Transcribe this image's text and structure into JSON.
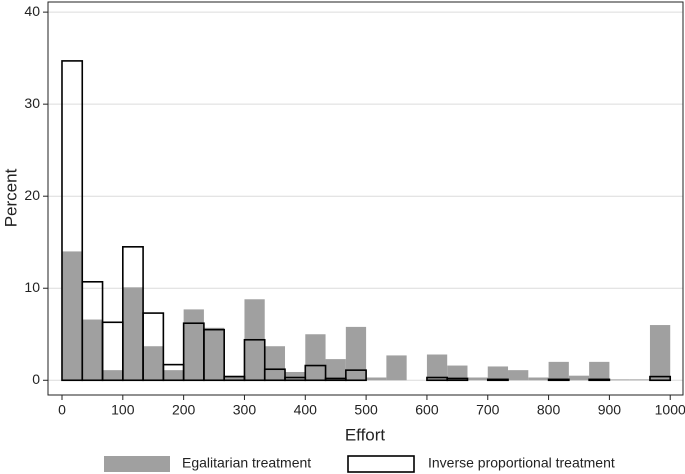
{
  "chart_data": {
    "type": "histogram",
    "x_label": "Effort",
    "y_label": "Percent",
    "bins": [
      0,
      33.33,
      66.67,
      100,
      133.33,
      166.67,
      200,
      233.33,
      266.67,
      300,
      333.33,
      366.67,
      400,
      433.33,
      466.67,
      500,
      533.33,
      566.67,
      600,
      633.33,
      666.67,
      700,
      733.33,
      766.67,
      800,
      833.33,
      866.67,
      900,
      933.33,
      966.67,
      1000
    ],
    "series": [
      {
        "name": "Egalitarian treatment",
        "color": "#a0a0a0",
        "filled": true,
        "values": [
          14.0,
          6.6,
          1.1,
          10.1,
          3.7,
          1.1,
          7.7,
          5.7,
          0.5,
          8.8,
          3.7,
          0.9,
          5.0,
          2.3,
          5.8,
          0.3,
          2.7,
          0,
          2.8,
          1.6,
          0.3,
          1.5,
          1.1,
          0.3,
          2.0,
          0.5,
          2.0,
          0.1,
          0.1,
          6.0
        ]
      },
      {
        "name": "Inverse proportional treatment",
        "color": "#000000",
        "filled": false,
        "values": [
          34.7,
          10.7,
          6.3,
          14.5,
          7.3,
          1.7,
          6.2,
          5.5,
          0.4,
          4.4,
          1.2,
          0.3,
          1.6,
          0.2,
          1.1,
          0,
          0,
          0,
          0.3,
          0.2,
          0,
          0.1,
          0,
          0,
          0.1,
          0,
          0.1,
          0,
          0,
          0.4
        ]
      }
    ],
    "xlim": [
      -23,
      1021
    ],
    "ylim": [
      -1.6,
      41.1
    ],
    "xticks": [
      0,
      100,
      200,
      300,
      400,
      500,
      600,
      700,
      800,
      900,
      1000
    ],
    "yticks": [
      0,
      10,
      20,
      30,
      40
    ],
    "grid": true,
    "legend": "bottom"
  }
}
